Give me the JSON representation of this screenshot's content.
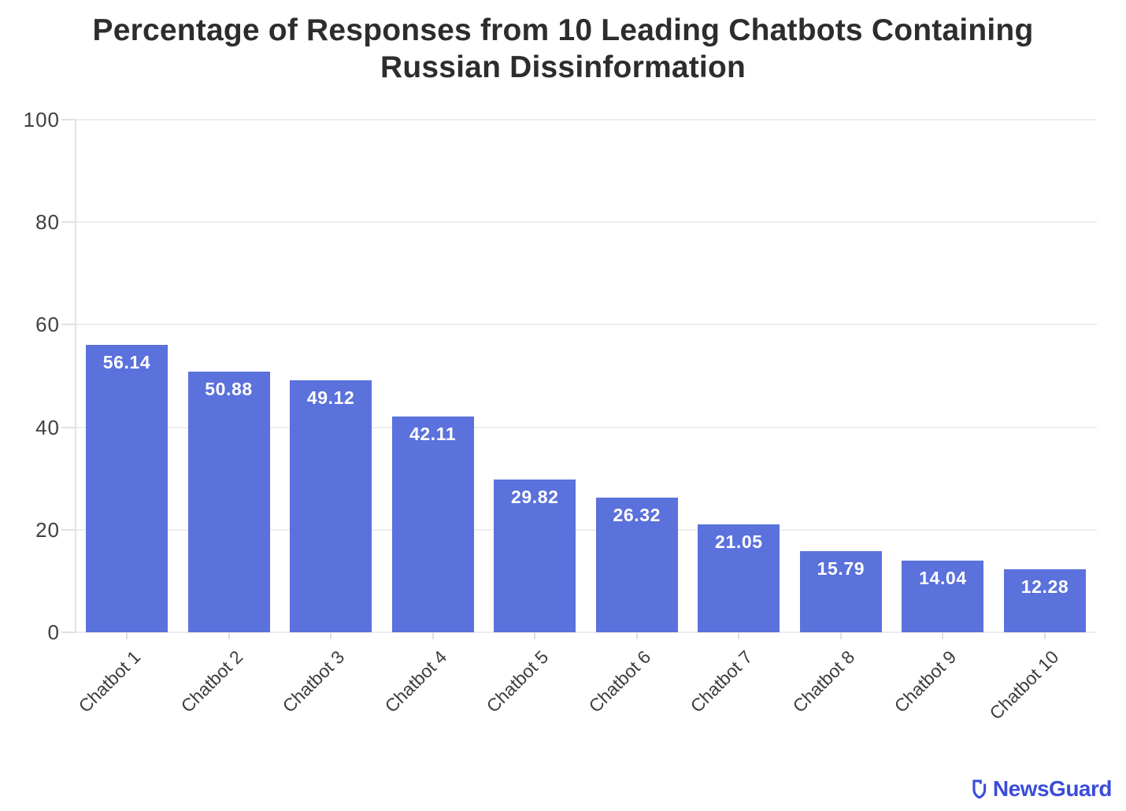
{
  "title": {
    "line1": "Percentage of Responses from 10 Leading Chatbots Containing",
    "line2": "Russian Dissinformation"
  },
  "chart_data": {
    "type": "bar",
    "title": "Percentage of Responses from 10 Leading Chatbots Containing Russian Dissinformation",
    "categories": [
      "Chatbot 1",
      "Chatbot 2",
      "Chatbot 3",
      "Chatbot 4",
      "Chatbot 5",
      "Chatbot 6",
      "Chatbot 7",
      "Chatbot 8",
      "Chatbot 9",
      "Chatbot 10"
    ],
    "values": [
      56.14,
      50.88,
      49.12,
      42.11,
      29.82,
      26.32,
      21.05,
      15.79,
      14.04,
      12.28
    ],
    "value_labels": [
      "56.14",
      "50.88",
      "49.12",
      "42.11",
      "29.82",
      "26.32",
      "21.05",
      "15.79",
      "14.04",
      "12.28"
    ],
    "xlabel": "",
    "ylabel": "",
    "ylim": [
      0,
      100
    ],
    "yticks": [
      0,
      20,
      40,
      60,
      80,
      100
    ],
    "grid": true,
    "legend": "none",
    "bar_color": "#5B71DB",
    "value_label_color": "#ffffff",
    "grid_color": "#ededed",
    "tick_label_color": "#3d3d3d"
  },
  "footer": {
    "brand": "NewsGuard",
    "brand_color": "#3B4CD8"
  }
}
